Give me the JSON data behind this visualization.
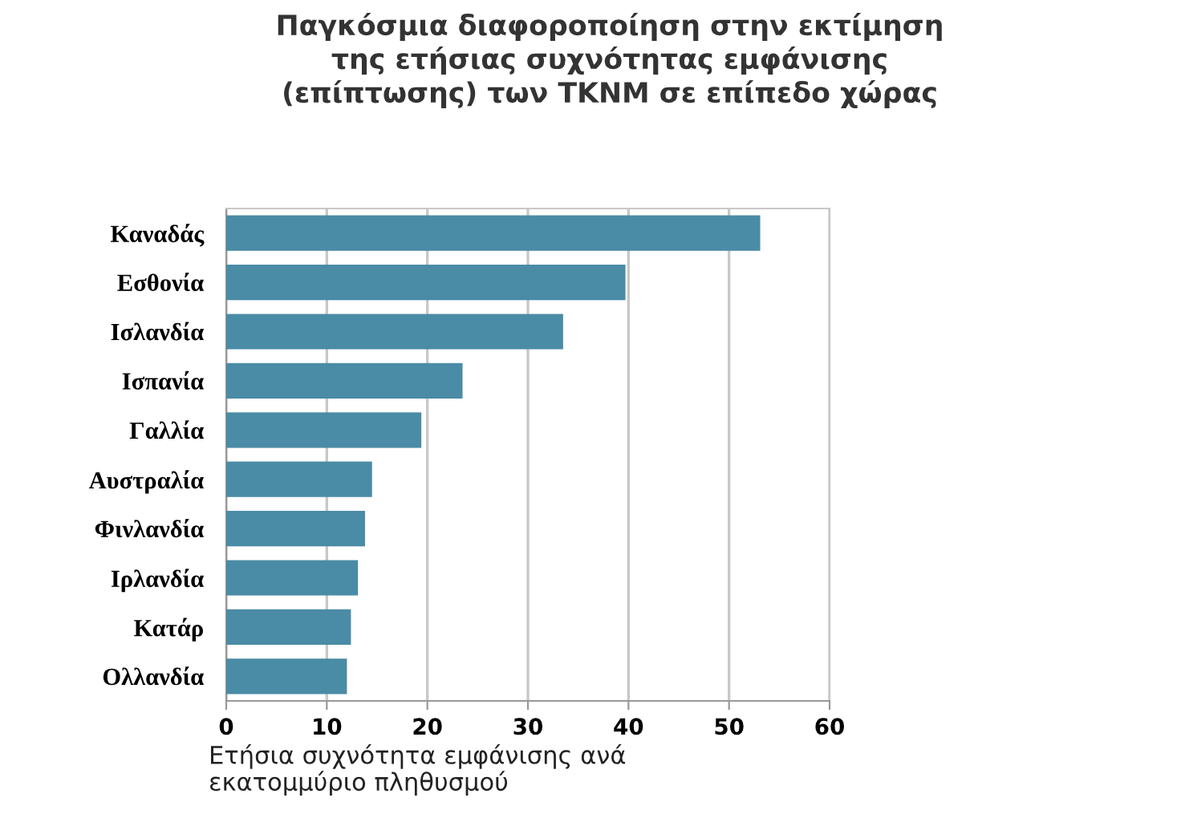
{
  "chart_data": {
    "type": "bar",
    "orientation": "horizontal",
    "title": "Παγκόσμια διαφοροποίηση στην εκτίμηση\nτης ετήσιας συχνότητας εμφάνισης\n(επίπτωσης) των ΤΚΝΜ σε επίπεδο χώρας",
    "xlabel": "Ετήσια συχνότητα εμφάνισης ανά\nεκατομμύριο πληθυσμού",
    "categories": [
      "Καναδάς",
      "Εσθονία",
      "Ισλανδία",
      "Ισπανία",
      "Γαλλία",
      "Αυστραλία",
      "Φινλανδία",
      "Ιρλανδία",
      "Κατάρ",
      "Ολλανδία"
    ],
    "values": [
      53.1,
      39.7,
      33.5,
      23.5,
      19.4,
      14.5,
      13.8,
      13.1,
      12.4,
      12.0
    ],
    "color": "#4a8ba6",
    "xlim": [
      0,
      60
    ],
    "xticks": [
      0,
      10,
      20,
      30,
      40,
      50,
      60
    ],
    "grid": "x"
  }
}
